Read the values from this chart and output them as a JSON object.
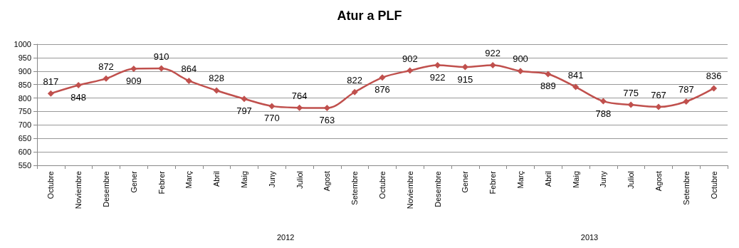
{
  "chart_data": {
    "type": "line",
    "title": "Atur a PLF",
    "categories": [
      "Octubre",
      "Noviembre",
      "Desembre",
      "Gener",
      "Febrer",
      "Març",
      "Abril",
      "Maig",
      "Juny",
      "Juliol",
      "Agost",
      "Setembre",
      "Octubre",
      "Noviembre",
      "Desembre",
      "Gener",
      "Febrer",
      "Març",
      "Abril",
      "Maig",
      "Juny",
      "Juliol",
      "Agost",
      "Setembre",
      "Octubre"
    ],
    "series": [
      {
        "color": "#c0504d",
        "values": [
          817,
          848,
          872,
          909,
          910,
          864,
          828,
          797,
          770,
          764,
          763,
          822,
          876,
          902,
          922,
          915,
          922,
          900,
          889,
          841,
          788,
          775,
          767,
          787,
          836
        ]
      }
    ],
    "ylim": [
      550,
      1000
    ],
    "yticks": [
      550,
      600,
      650,
      700,
      750,
      800,
      850,
      900,
      950,
      1000
    ],
    "grid": "y",
    "marker": "diamond",
    "line_style": "solid",
    "data_labels": true,
    "annotations": [
      "2012",
      "2013"
    ]
  }
}
